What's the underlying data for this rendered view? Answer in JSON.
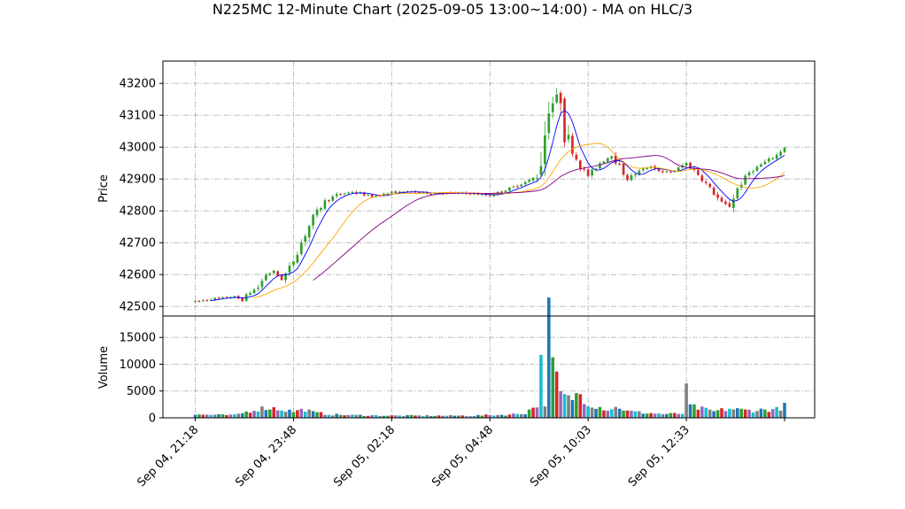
{
  "chart_data": {
    "type": "candlestick",
    "title": "N225MC 12-Minute Chart (2025-09-05 13:00~14:00) - MA on HLC/3",
    "price_panel": {
      "ylabel": "Price",
      "ylim": [
        42470,
        43270
      ],
      "yticks": [
        42500,
        42600,
        42700,
        42800,
        42900,
        43000,
        43100,
        43200
      ]
    },
    "volume_panel": {
      "ylabel": "Volume",
      "ylim": [
        0,
        19000
      ],
      "yticks": [
        0,
        5000,
        10000,
        15000
      ],
      "ytick_labels": [
        "0",
        "5000",
        "10000",
        "15000"
      ]
    },
    "xaxis": {
      "tick_labels": [
        "Sep 04, 21:18",
        "Sep 04, 23:48",
        "Sep 05, 02:18",
        "Sep 05, 04:48",
        "Sep 05, 10:03",
        "Sep 05, 12:33"
      ],
      "tick_bar_index": [
        0,
        25,
        50,
        75,
        100,
        125
      ],
      "bar_count": 151
    },
    "colors": {
      "up": "#2ca02c",
      "down": "#d62728",
      "ma_fast": "#0000ff",
      "ma_mid": "#ffa500",
      "ma_slow": "#800080",
      "volume_palette": [
        "#1f77b4",
        "#2ca02c",
        "#d62728",
        "#9467bd",
        "#17becf",
        "#7f7f7f"
      ]
    },
    "anchors": [
      [
        0,
        42515
      ],
      [
        5,
        42525
      ],
      [
        10,
        42530
      ],
      [
        12,
        42520
      ],
      [
        14,
        42545
      ],
      [
        16,
        42560
      ],
      [
        18,
        42600
      ],
      [
        20,
        42610
      ],
      [
        22,
        42585
      ],
      [
        24,
        42620
      ],
      [
        27,
        42700
      ],
      [
        30,
        42780
      ],
      [
        33,
        42830
      ],
      [
        36,
        42850
      ],
      [
        40,
        42860
      ],
      [
        45,
        42845
      ],
      [
        50,
        42858
      ],
      [
        55,
        42860
      ],
      [
        60,
        42855
      ],
      [
        65,
        42856
      ],
      [
        70,
        42855
      ],
      [
        75,
        42848
      ],
      [
        80,
        42870
      ],
      [
        85,
        42895
      ],
      [
        87,
        42910
      ],
      [
        88,
        42960
      ],
      [
        90,
        43130
      ],
      [
        93,
        43160
      ],
      [
        94,
        43050
      ],
      [
        96,
        42990
      ],
      [
        98,
        42940
      ],
      [
        100,
        42910
      ],
      [
        103,
        42950
      ],
      [
        106,
        42975
      ],
      [
        110,
        42900
      ],
      [
        113,
        42925
      ],
      [
        116,
        42940
      ],
      [
        119,
        42920
      ],
      [
        122,
        42925
      ],
      [
        125,
        42950
      ],
      [
        128,
        42915
      ],
      [
        131,
        42870
      ],
      [
        134,
        42825
      ],
      [
        136,
        42815
      ],
      [
        138,
        42870
      ],
      [
        141,
        42920
      ],
      [
        144,
        42945
      ],
      [
        148,
        42975
      ],
      [
        150,
        43000
      ]
    ],
    "volume_anchors": [
      [
        0,
        600
      ],
      [
        10,
        500
      ],
      [
        15,
        1500
      ],
      [
        18,
        1900
      ],
      [
        20,
        1800
      ],
      [
        25,
        1200
      ],
      [
        28,
        1600
      ],
      [
        30,
        1000
      ],
      [
        35,
        600
      ],
      [
        40,
        500
      ],
      [
        50,
        400
      ],
      [
        60,
        400
      ],
      [
        70,
        400
      ],
      [
        75,
        500
      ],
      [
        80,
        600
      ],
      [
        84,
        900
      ],
      [
        87,
        2500
      ],
      [
        88,
        9800
      ],
      [
        89,
        3000
      ],
      [
        90,
        18000
      ],
      [
        91,
        10000
      ],
      [
        92,
        7000
      ],
      [
        93,
        4500
      ],
      [
        95,
        3500
      ],
      [
        98,
        4500
      ],
      [
        100,
        2800
      ],
      [
        103,
        2000
      ],
      [
        105,
        1600
      ],
      [
        108,
        2000
      ],
      [
        110,
        1200
      ],
      [
        115,
        900
      ],
      [
        120,
        700
      ],
      [
        124,
        800
      ],
      [
        125,
        5000
      ],
      [
        126,
        2200
      ],
      [
        128,
        1800
      ],
      [
        132,
        1200
      ],
      [
        136,
        1700
      ],
      [
        140,
        1400
      ],
      [
        145,
        1500
      ],
      [
        148,
        1600
      ],
      [
        150,
        2200
      ]
    ],
    "moving_averages": [
      {
        "window": 5,
        "start": 4,
        "color_key": "ma_fast"
      },
      {
        "window": 15,
        "start": 15,
        "color_key": "ma_mid"
      },
      {
        "window": 30,
        "start": 30,
        "color_key": "ma_slow"
      }
    ]
  }
}
